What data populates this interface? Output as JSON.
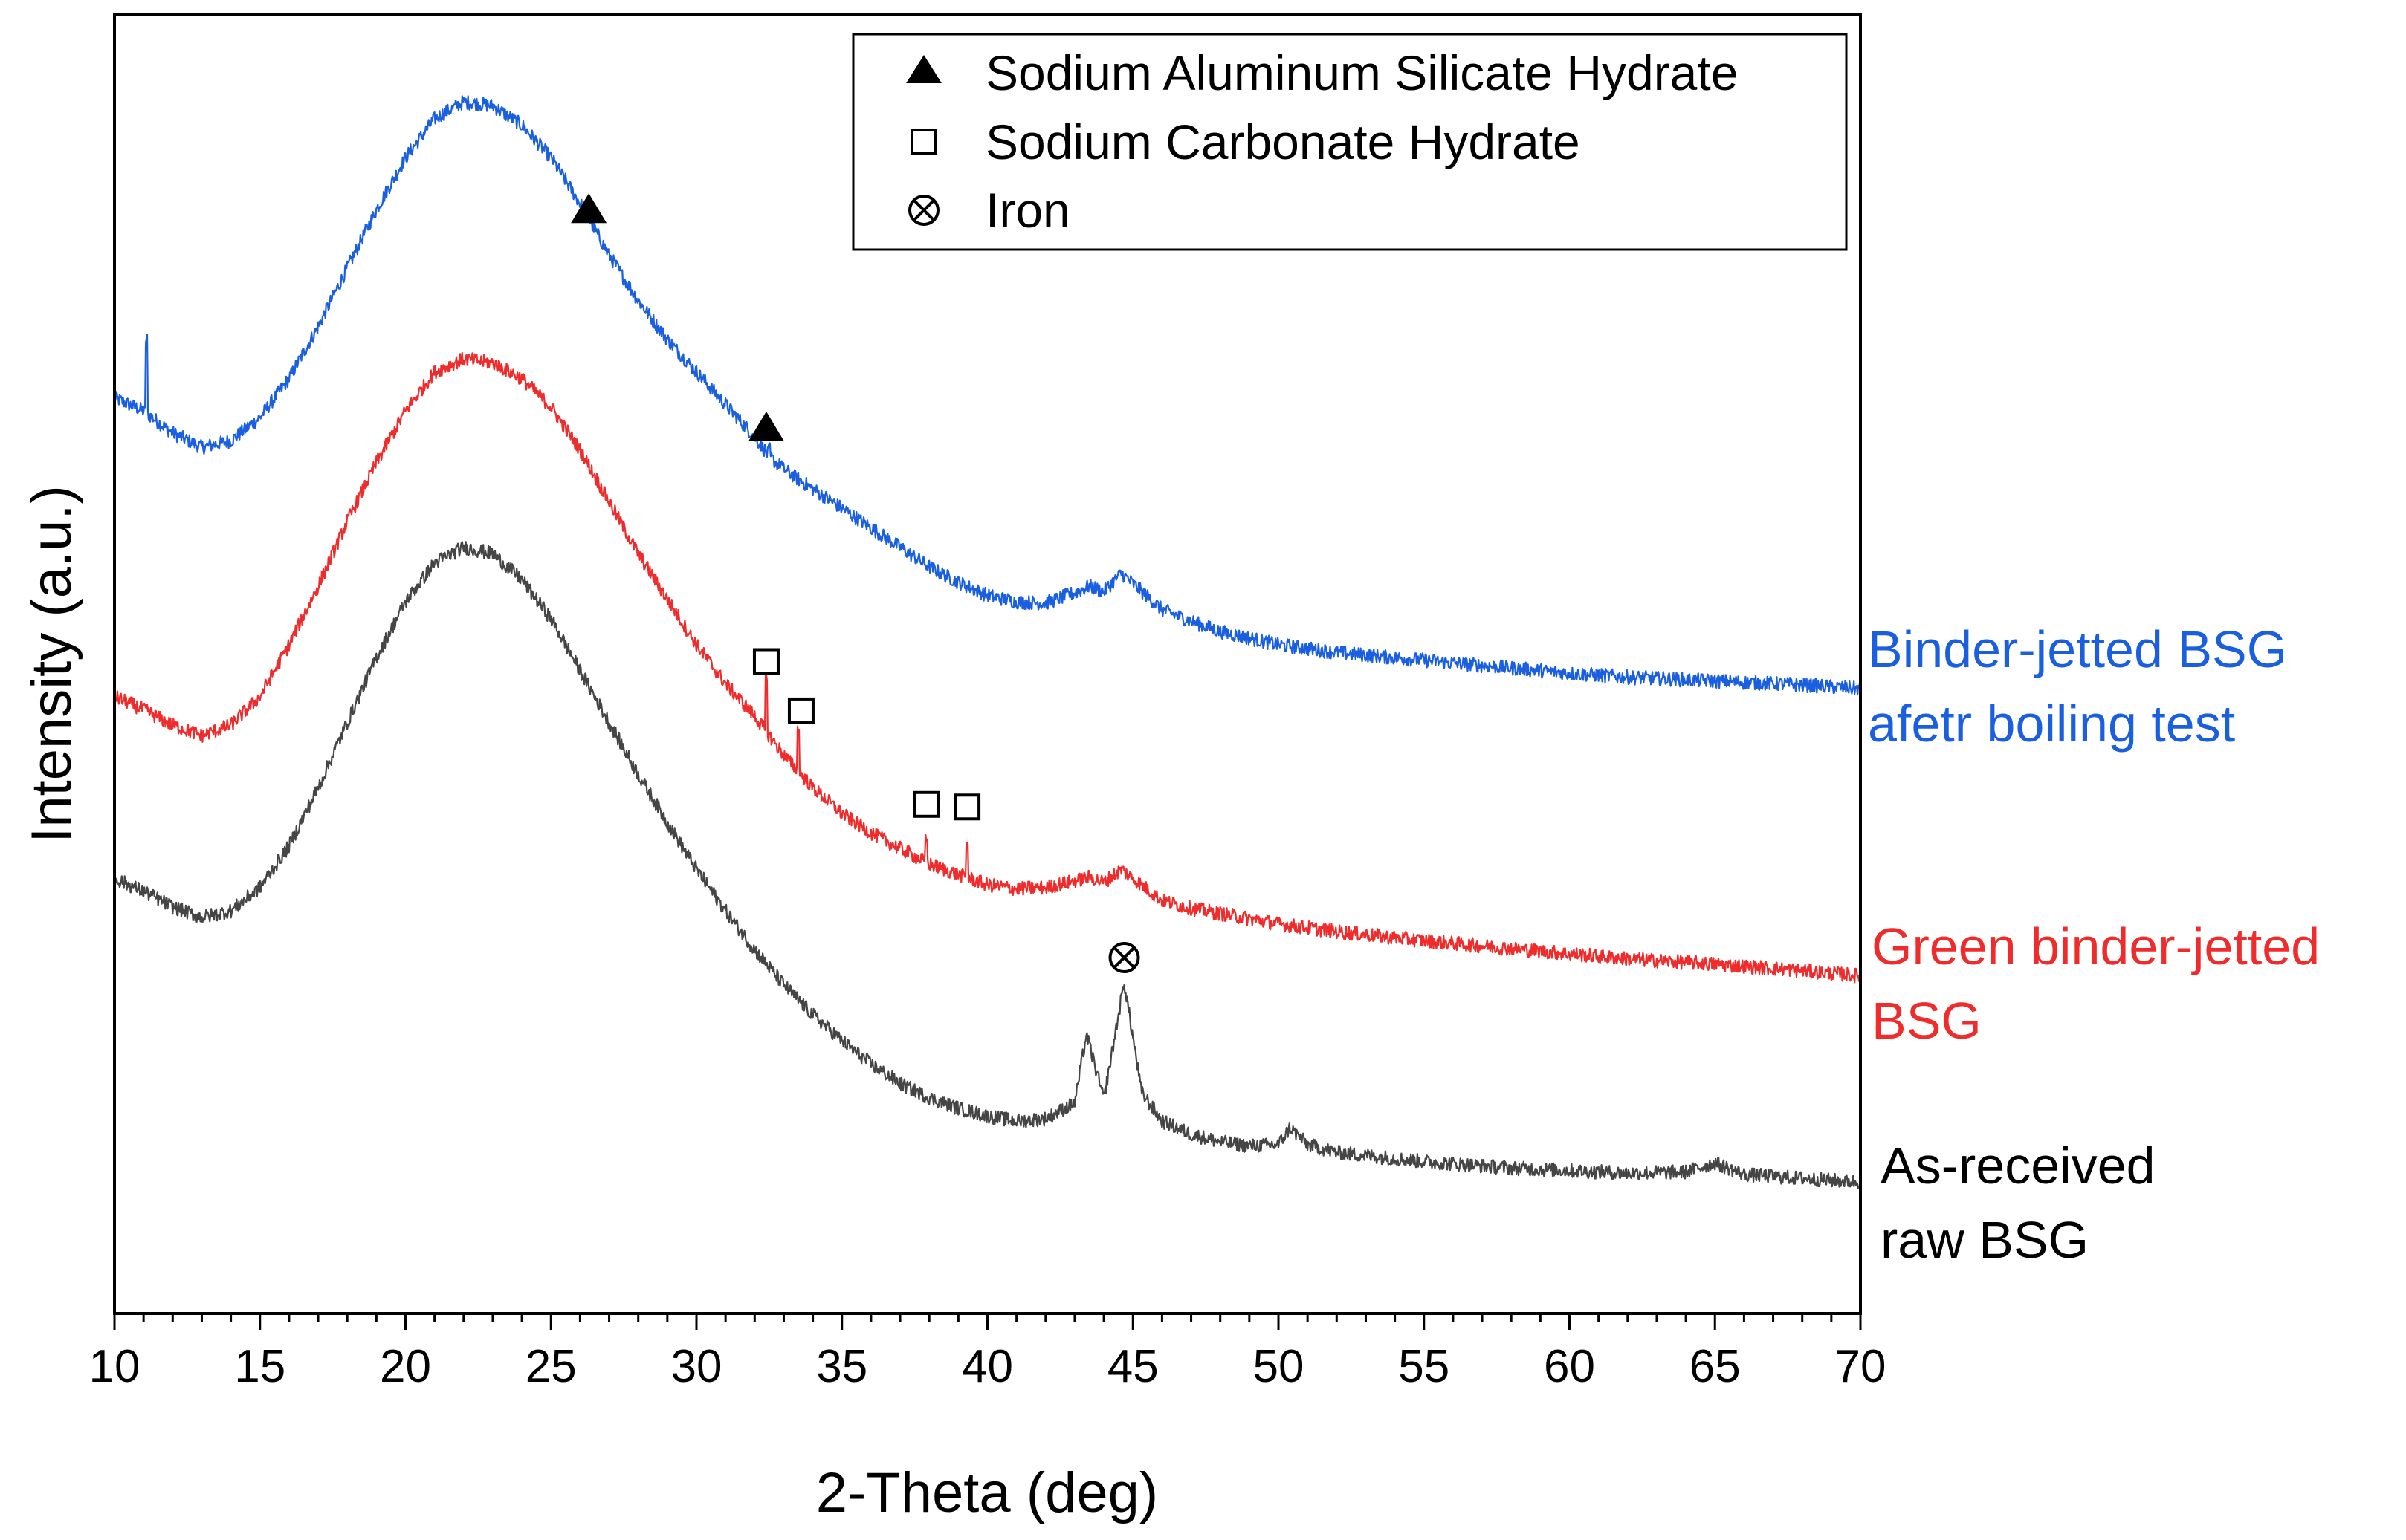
{
  "chart_data": {
    "type": "line",
    "title": "",
    "xlabel": "2-Theta (deg)",
    "ylabel": "Intensity (a.u.)",
    "xlim": [
      10,
      70
    ],
    "ylim": [
      0,
      100
    ],
    "xticks": [
      10,
      15,
      20,
      25,
      30,
      35,
      40,
      45,
      50,
      55,
      60,
      65,
      70
    ],
    "grid": false,
    "legend_position": "top-right",
    "legend": [
      {
        "marker": "filled-triangle",
        "label": "Sodium Aluminum Silicate Hydrate"
      },
      {
        "marker": "open-square",
        "label": "Sodium Carbonate Hydrate"
      },
      {
        "marker": "circled-x",
        "label": "Iron"
      }
    ],
    "series": [
      {
        "name": "Binder-jetted BSG afetr boiling test",
        "label_lines": [
          "Binder-jetted BSG",
          "afetr boiling test"
        ],
        "color": "#1a5fe0",
        "points": [
          [
            10,
            70.5
          ],
          [
            11,
            69.5
          ],
          [
            12,
            67.8
          ],
          [
            13,
            66.7
          ],
          [
            14,
            67.2
          ],
          [
            15,
            69.0
          ],
          [
            16,
            72.0
          ],
          [
            17,
            76.0
          ],
          [
            18,
            80.5
          ],
          [
            19,
            85.0
          ],
          [
            20,
            89.0
          ],
          [
            21,
            92.0
          ],
          [
            22,
            93.3
          ],
          [
            23,
            93.0
          ],
          [
            24,
            91.5
          ],
          [
            25,
            89.0
          ],
          [
            26,
            85.5
          ],
          [
            27,
            81.5
          ],
          [
            28,
            78.0
          ],
          [
            29,
            75.0
          ],
          [
            30,
            72.5
          ],
          [
            31,
            70.0
          ],
          [
            32,
            67.5
          ],
          [
            32.5,
            66.0
          ],
          [
            33,
            65.0
          ],
          [
            34,
            63.5
          ],
          [
            35,
            62.0
          ],
          [
            36,
            60.5
          ],
          [
            37,
            59.0
          ],
          [
            38,
            57.5
          ],
          [
            39,
            56.3
          ],
          [
            40,
            55.3
          ],
          [
            41,
            54.8
          ],
          [
            42,
            54.7
          ],
          [
            43,
            55.5
          ],
          [
            43.5,
            56.0
          ],
          [
            44,
            55.6
          ],
          [
            44.6,
            57.0
          ],
          [
            45,
            56.2
          ],
          [
            46,
            54.2
          ],
          [
            47,
            53.3
          ],
          [
            48,
            52.5
          ],
          [
            50,
            51.5
          ],
          [
            52,
            50.9
          ],
          [
            55,
            50.3
          ],
          [
            58,
            49.7
          ],
          [
            60,
            49.3
          ],
          [
            62,
            49.0
          ],
          [
            65,
            48.7
          ],
          [
            68,
            48.4
          ],
          [
            70,
            48.1
          ]
        ],
        "peaks": [
          [
            11.1,
            75.0
          ],
          [
            32.5,
            66.5
          ],
          [
            32.9,
            65.5
          ]
        ]
      },
      {
        "name": "Green binder-jetted BSG",
        "label_lines": [
          "Green binder-jetted",
          "BSG"
        ],
        "color": "#ef2b2b",
        "points": [
          [
            10,
            47.5
          ],
          [
            11,
            46.5
          ],
          [
            12,
            45.3
          ],
          [
            13,
            44.5
          ],
          [
            14,
            45.3
          ],
          [
            15,
            47.5
          ],
          [
            16,
            51.5
          ],
          [
            17,
            56.0
          ],
          [
            18,
            61.0
          ],
          [
            19,
            65.5
          ],
          [
            20,
            69.5
          ],
          [
            21,
            72.5
          ],
          [
            22,
            73.5
          ],
          [
            23,
            73.2
          ],
          [
            24,
            72.0
          ],
          [
            25,
            69.8
          ],
          [
            26,
            66.5
          ],
          [
            27,
            62.5
          ],
          [
            28,
            58.5
          ],
          [
            29,
            55.0
          ],
          [
            30,
            51.5
          ],
          [
            31,
            48.5
          ],
          [
            32,
            46.0
          ],
          [
            33,
            43.0
          ],
          [
            34,
            40.5
          ],
          [
            35,
            38.5
          ],
          [
            36,
            37.0
          ],
          [
            37,
            35.8
          ],
          [
            38,
            34.6
          ],
          [
            39,
            33.8
          ],
          [
            40,
            33.0
          ],
          [
            41,
            32.7
          ],
          [
            42,
            32.8
          ],
          [
            43,
            33.3
          ],
          [
            43.5,
            33.6
          ],
          [
            44,
            33.2
          ],
          [
            44.6,
            34.2
          ],
          [
            45,
            33.5
          ],
          [
            46,
            31.8
          ],
          [
            47,
            31.2
          ],
          [
            48,
            30.8
          ],
          [
            50,
            30.0
          ],
          [
            52,
            29.4
          ],
          [
            55,
            28.7
          ],
          [
            58,
            28.1
          ],
          [
            60,
            27.7
          ],
          [
            62,
            27.3
          ],
          [
            65,
            26.9
          ],
          [
            68,
            26.4
          ],
          [
            70,
            26.0
          ]
        ],
        "peaks": [
          [
            32.4,
            48.8
          ],
          [
            33.5,
            45.0
          ],
          [
            37.9,
            36.5
          ],
          [
            39.3,
            36.2
          ]
        ]
      },
      {
        "name": "As-received raw BSG",
        "label_lines": [
          "As-received",
          "raw BSG"
        ],
        "color": "#454545",
        "points": [
          [
            10,
            33.5
          ],
          [
            11,
            32.5
          ],
          [
            12,
            31.3
          ],
          [
            13,
            30.5
          ],
          [
            14,
            31.0
          ],
          [
            15,
            32.8
          ],
          [
            16,
            36.0
          ],
          [
            17,
            40.5
          ],
          [
            18,
            45.5
          ],
          [
            19,
            50.5
          ],
          [
            20,
            54.8
          ],
          [
            21,
            57.8
          ],
          [
            22,
            59.0
          ],
          [
            23,
            58.5
          ],
          [
            24,
            56.5
          ],
          [
            25,
            53.5
          ],
          [
            26,
            49.5
          ],
          [
            27,
            45.5
          ],
          [
            28,
            41.5
          ],
          [
            29,
            37.8
          ],
          [
            30,
            34.2
          ],
          [
            31,
            31.0
          ],
          [
            32,
            28.0
          ],
          [
            33,
            25.3
          ],
          [
            34,
            23.0
          ],
          [
            35,
            21.0
          ],
          [
            36,
            19.2
          ],
          [
            37,
            17.7
          ],
          [
            38,
            16.6
          ],
          [
            39,
            15.8
          ],
          [
            40,
            15.2
          ],
          [
            41,
            14.8
          ],
          [
            42,
            15.0
          ],
          [
            43,
            16.2
          ],
          [
            43.4,
            21.5
          ],
          [
            44,
            16.5
          ],
          [
            44.7,
            25.5
          ],
          [
            45.3,
            17.0
          ],
          [
            46,
            14.8
          ],
          [
            47,
            13.8
          ],
          [
            48,
            13.2
          ],
          [
            49,
            12.9
          ],
          [
            50,
            13.0
          ],
          [
            50.4,
            14.3
          ],
          [
            51,
            13.0
          ],
          [
            52,
            12.4
          ],
          [
            55,
            11.7
          ],
          [
            58,
            11.2
          ],
          [
            60,
            11.0
          ],
          [
            62,
            10.8
          ],
          [
            64,
            10.9
          ],
          [
            65,
            11.6
          ],
          [
            66,
            10.7
          ],
          [
            68,
            10.4
          ],
          [
            70,
            10.1
          ]
        ],
        "peaks": []
      }
    ],
    "annotations": [
      {
        "marker": "filled-triangle",
        "x": 26.3,
        "y": 85.0
      },
      {
        "marker": "filled-triangle",
        "x": 32.4,
        "y": 68.2
      },
      {
        "marker": "open-square",
        "x": 32.4,
        "y": 50.2
      },
      {
        "marker": "open-square",
        "x": 33.6,
        "y": 46.4
      },
      {
        "marker": "open-square",
        "x": 37.9,
        "y": 39.2
      },
      {
        "marker": "open-square",
        "x": 39.3,
        "y": 39.0
      },
      {
        "marker": "circled-x",
        "x": 44.7,
        "y": 27.4
      }
    ]
  }
}
